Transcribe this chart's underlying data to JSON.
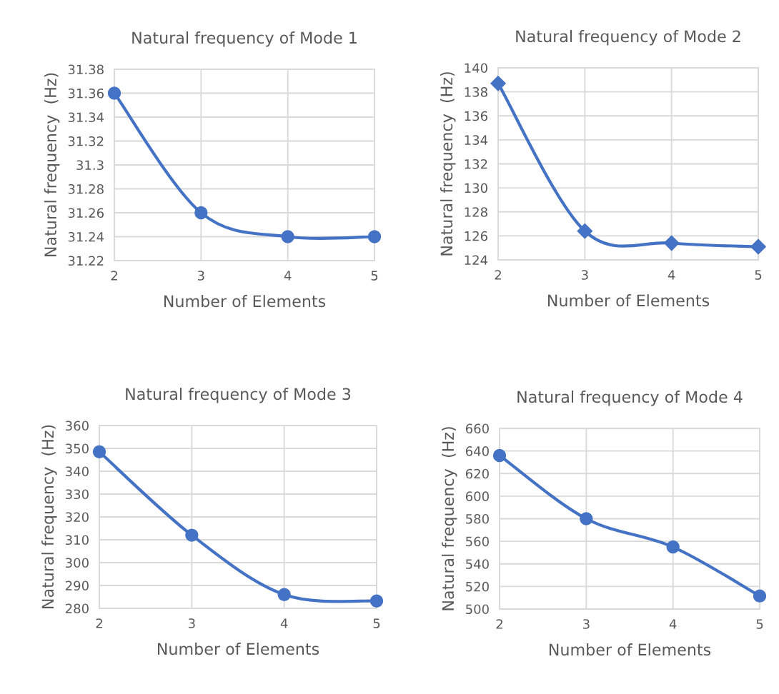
{
  "chart_data": [
    {
      "type": "line",
      "title": "Natural frequency of Mode 1",
      "xlabel": "Number of Elements",
      "ylabel": "Natural frequency  (Hz)",
      "x": [
        2,
        3,
        4,
        5
      ],
      "xlim": [
        2,
        5
      ],
      "xticks": [
        2,
        3,
        4,
        5
      ],
      "ylim": [
        31.22,
        31.38
      ],
      "yticks": [
        31.22,
        31.24,
        31.26,
        31.28,
        31.3,
        31.32,
        31.34,
        31.36,
        31.38
      ],
      "grid": true,
      "marker": "circle",
      "line_style": "solid",
      "series": [
        {
          "color": "#4472c4",
          "values": [
            31.36,
            31.26,
            31.24,
            31.24
          ]
        }
      ]
    },
    {
      "type": "line",
      "title": "Natural frequency of Mode 2",
      "xlabel": "Number of Elements",
      "ylabel": "Natural frequency  (Hz)",
      "x": [
        2,
        3,
        4,
        5
      ],
      "xlim": [
        2,
        5
      ],
      "xticks": [
        2,
        3,
        4,
        5
      ],
      "ylim": [
        124,
        140
      ],
      "yticks": [
        124,
        126,
        128,
        130,
        132,
        134,
        136,
        138,
        140
      ],
      "grid": true,
      "marker": "diamond",
      "line_style": "solid",
      "series": [
        {
          "color": "#4472c4",
          "values": [
            138.7,
            126.4,
            125.4,
            125.1
          ]
        }
      ]
    },
    {
      "type": "line",
      "title": "Natural frequency of Mode 3",
      "xlabel": "Number of Elements",
      "ylabel": "Natural frequency  (Hz)",
      "x": [
        2,
        3,
        4,
        5
      ],
      "xlim": [
        2,
        5
      ],
      "xticks": [
        2,
        3,
        4,
        5
      ],
      "ylim": [
        280,
        360
      ],
      "yticks": [
        280,
        290,
        300,
        310,
        320,
        330,
        340,
        350,
        360
      ],
      "grid": true,
      "marker": "circle",
      "line_style": "solid",
      "series": [
        {
          "color": "#4472c4",
          "values": [
            348.5,
            312,
            286,
            283.2
          ]
        }
      ]
    },
    {
      "type": "line",
      "title": "Natural frequency of Mode 4",
      "xlabel": "Number of Elements",
      "ylabel": "Natural frequency  (Hz)",
      "x": [
        2,
        3,
        4,
        5
      ],
      "xlim": [
        2,
        5
      ],
      "xticks": [
        2,
        3,
        4,
        5
      ],
      "ylim": [
        500,
        660
      ],
      "yticks": [
        500,
        520,
        540,
        560,
        580,
        600,
        620,
        640,
        660
      ],
      "grid": true,
      "marker": "circle",
      "line_style": "solid",
      "series": [
        {
          "color": "#4472c4",
          "values": [
            636,
            580,
            555,
            511.6
          ]
        }
      ]
    }
  ]
}
